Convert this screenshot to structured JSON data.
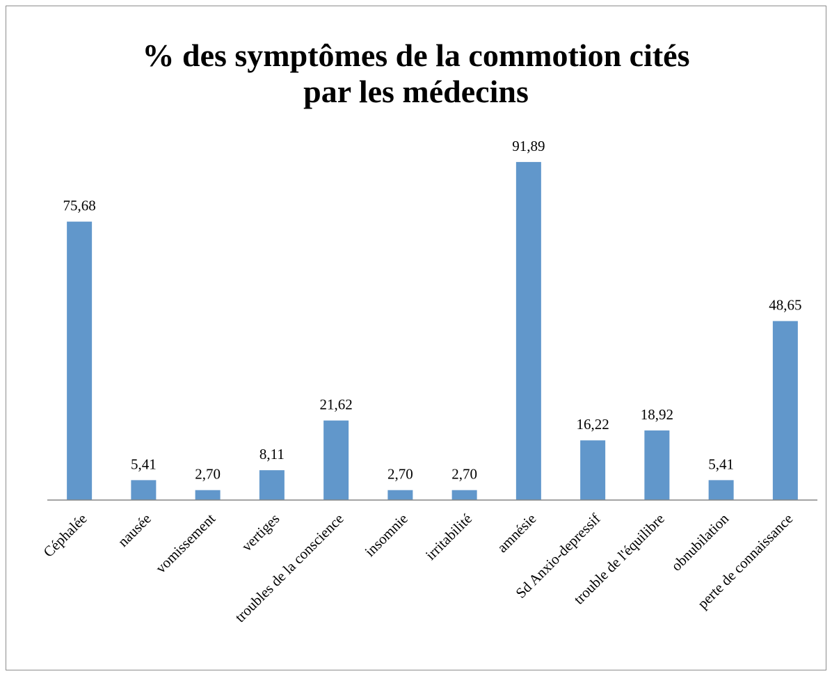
{
  "chart_data": {
    "type": "bar",
    "title": [
      "% des symptômes de la commotion cités",
      "par les médecins"
    ],
    "categories": [
      "Céphalée",
      "nausée",
      "vomissement",
      "vertiges",
      "troubles de la conscience",
      "insomnie",
      "irritabilité",
      "amnésie",
      "Sd Anxio-depressif",
      "trouble de l'équilibre",
      "obnubilation",
      "perte de connaissance"
    ],
    "values": [
      75.68,
      5.41,
      2.7,
      8.11,
      21.62,
      2.7,
      2.7,
      91.89,
      16.22,
      18.92,
      5.41,
      48.65
    ],
    "value_labels": [
      "75,68",
      "5,41",
      "2,70",
      "8,11",
      "21,62",
      "2,70",
      "2,70",
      "91,89",
      "16,22",
      "18,92",
      "5,41",
      "48,65"
    ],
    "color": "#6197cb",
    "ylim": [
      0,
      100
    ]
  }
}
